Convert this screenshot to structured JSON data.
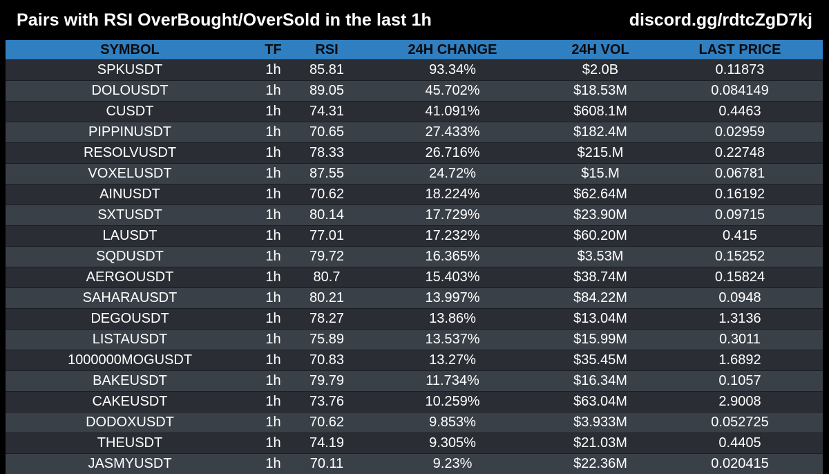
{
  "header": {
    "title": "Pairs with RSI OverBought/OverSold in the last 1h",
    "link": "discord.gg/rdtcZgD7kj"
  },
  "colors": {
    "background": "#000000",
    "header_row": "#2f7fc1",
    "row_odd": "#2a2e34",
    "row_even": "#3a4047"
  },
  "table": {
    "columns": [
      "SYMBOL",
      "TF",
      "RSI",
      "24H CHANGE",
      "24H VOL",
      "LAST PRICE"
    ],
    "rows": [
      [
        "SPKUSDT",
        "1h",
        "85.81",
        "93.34%",
        "$2.0B",
        "0.11873"
      ],
      [
        "DOLOUSDT",
        "1h",
        "89.05",
        "45.702%",
        "$18.53M",
        "0.084149"
      ],
      [
        "CUSDT",
        "1h",
        "74.31",
        "41.091%",
        "$608.1M",
        "0.4463"
      ],
      [
        "PIPPINUSDT",
        "1h",
        "70.65",
        "27.433%",
        "$182.4M",
        "0.02959"
      ],
      [
        "RESOLVUSDT",
        "1h",
        "78.33",
        "26.716%",
        "$215.M",
        "0.22748"
      ],
      [
        "VOXELUSDT",
        "1h",
        "87.55",
        "24.72%",
        "$15.M",
        "0.06781"
      ],
      [
        "AINUSDT",
        "1h",
        "70.62",
        "18.224%",
        "$62.64M",
        "0.16192"
      ],
      [
        "SXTUSDT",
        "1h",
        "80.14",
        "17.729%",
        "$23.90M",
        "0.09715"
      ],
      [
        "LAUSDT",
        "1h",
        "77.01",
        "17.232%",
        "$60.20M",
        "0.415"
      ],
      [
        "SQDUSDT",
        "1h",
        "79.72",
        "16.365%",
        "$3.53M",
        "0.15252"
      ],
      [
        "AERGOUSDT",
        "1h",
        "80.7",
        "15.403%",
        "$38.74M",
        "0.15824"
      ],
      [
        "SAHARAUSDT",
        "1h",
        "80.21",
        "13.997%",
        "$84.22M",
        "0.0948"
      ],
      [
        "DEGOUSDT",
        "1h",
        "78.27",
        "13.86%",
        "$13.04M",
        "1.3136"
      ],
      [
        "LISTAUSDT",
        "1h",
        "75.89",
        "13.537%",
        "$15.99M",
        "0.3011"
      ],
      [
        "1000000MOGUSDT",
        "1h",
        "70.83",
        "13.27%",
        "$35.45M",
        "1.6892"
      ],
      [
        "BAKEUSDT",
        "1h",
        "79.79",
        "11.734%",
        "$16.34M",
        "0.1057"
      ],
      [
        "CAKEUSDT",
        "1h",
        "73.76",
        "10.259%",
        "$63.04M",
        "2.9008"
      ],
      [
        "DODOXUSDT",
        "1h",
        "70.62",
        "9.853%",
        "$3.933M",
        "0.052725"
      ],
      [
        "THEUSDT",
        "1h",
        "74.19",
        "9.305%",
        "$21.03M",
        "0.4405"
      ],
      [
        "JASMYUSDT",
        "1h",
        "70.11",
        "9.23%",
        "$22.36M",
        "0.020415"
      ]
    ]
  }
}
